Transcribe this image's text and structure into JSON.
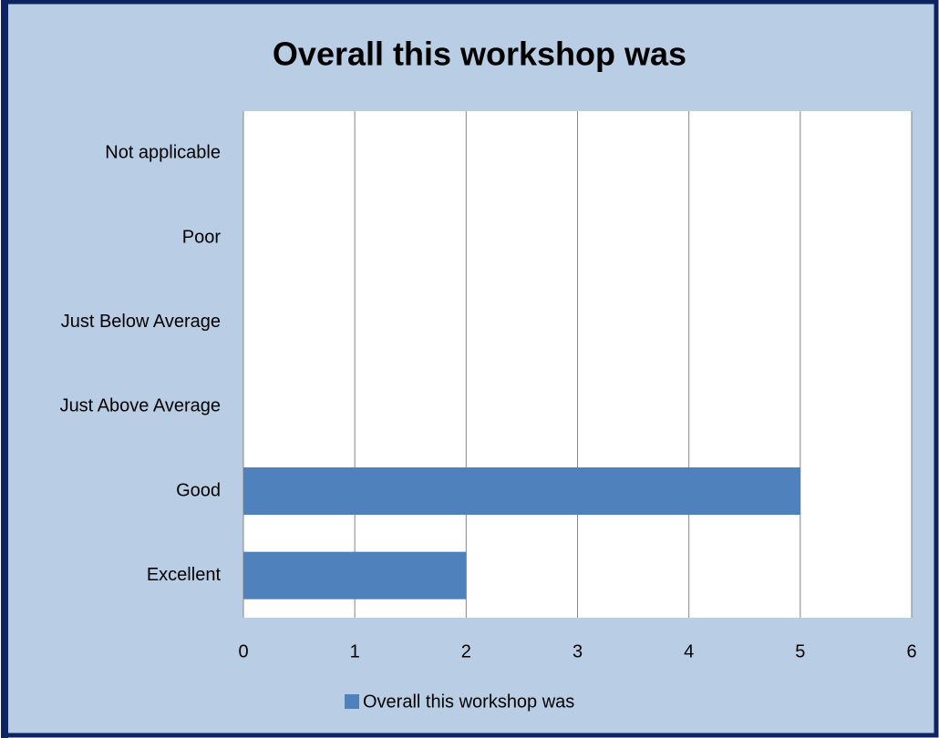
{
  "chart_data": {
    "type": "bar",
    "orientation": "horizontal",
    "title": "Overall this workshop was",
    "categories": [
      "Excellent",
      "Good",
      "Just Above Average",
      "Just Below Average",
      "Poor",
      "Not applicable"
    ],
    "series": [
      {
        "name": "Overall this workshop was",
        "color": "#4f81bd",
        "values": [
          2,
          5,
          0,
          0,
          0,
          0
        ]
      }
    ],
    "xlim": [
      0,
      6
    ],
    "xticks": [
      0,
      1,
      2,
      3,
      4,
      5,
      6
    ],
    "grid": true,
    "legend": "bottom"
  }
}
